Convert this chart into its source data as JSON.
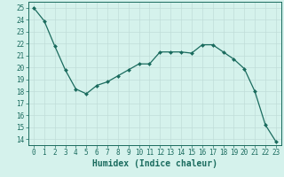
{
  "x": [
    0,
    1,
    2,
    3,
    4,
    5,
    6,
    7,
    8,
    9,
    10,
    11,
    12,
    13,
    14,
    15,
    16,
    17,
    18,
    19,
    20,
    21,
    22,
    23
  ],
  "y": [
    25.0,
    23.9,
    21.8,
    19.8,
    18.2,
    17.8,
    18.5,
    18.8,
    19.3,
    19.8,
    20.3,
    20.3,
    21.3,
    21.3,
    21.3,
    21.2,
    21.9,
    21.9,
    21.3,
    20.7,
    19.9,
    18.0,
    15.2,
    13.8
  ],
  "line_color": "#1a6b5e",
  "marker_color": "#1a6b5e",
  "bg_color": "#d5f2ec",
  "grid_color": "#c0ddd8",
  "xlim": [
    -0.5,
    23.5
  ],
  "ylim": [
    13.5,
    25.5
  ],
  "yticks": [
    14,
    15,
    16,
    17,
    18,
    19,
    20,
    21,
    22,
    23,
    24,
    25
  ],
  "xticks": [
    0,
    1,
    2,
    3,
    4,
    5,
    6,
    7,
    8,
    9,
    10,
    11,
    12,
    13,
    14,
    15,
    16,
    17,
    18,
    19,
    20,
    21,
    22,
    23
  ],
  "xlabel": "Humidex (Indice chaleur)",
  "tick_fontsize": 5.5,
  "label_fontsize": 7.0
}
